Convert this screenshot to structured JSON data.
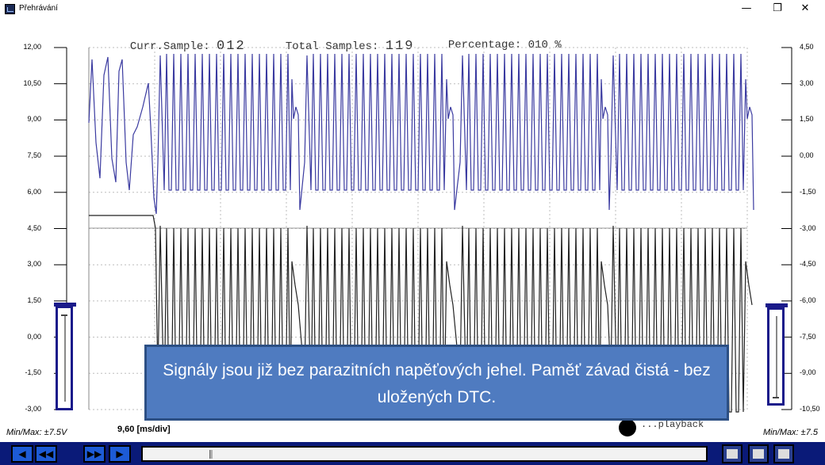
{
  "window": {
    "title": "Přehrávání",
    "buttons": {
      "minimize": "—",
      "restore": "❐",
      "close": "✕"
    }
  },
  "header": {
    "curr_label": "Curr.Sample:",
    "curr_value": "012",
    "total_label": "Total Samples:",
    "total_value": "119",
    "percent_label": "Percentage:",
    "percent_value": "010 %"
  },
  "axis_left": [
    "12,00",
    "10,50",
    "9,00",
    "7,50",
    "6,00",
    "4,50",
    "3,00",
    "1,50",
    "0,00",
    "-1,50",
    "-3,00"
  ],
  "axis_right": [
    "4,50",
    "3,00",
    "1,50",
    "0,00",
    "-1,50",
    "-3,00",
    "-4,50",
    "-6,00",
    "-7,50",
    "-9,00",
    "-10,50"
  ],
  "footer": {
    "minmax_left": "Min/Max: ±7.5V",
    "minmax_right": "Min/Max: ±7.5",
    "timebase": "9,60 [ms/div]",
    "playback": "...playback"
  },
  "controls": {
    "rewind": "◀",
    "fast_back": "◀◀",
    "fast_forward": "▶▶",
    "play": "▶"
  },
  "colors": {
    "trace_top": "#3a3aa0",
    "trace_bottom": "#222222",
    "grid": "#bdbdbd",
    "caption_bg": "#4f7bc0",
    "bar": "#0a1a78"
  },
  "caption": "Signály jsou již bez parazitních napěťových jehel. Paměť závad čistá - bez uložených DTC."
}
